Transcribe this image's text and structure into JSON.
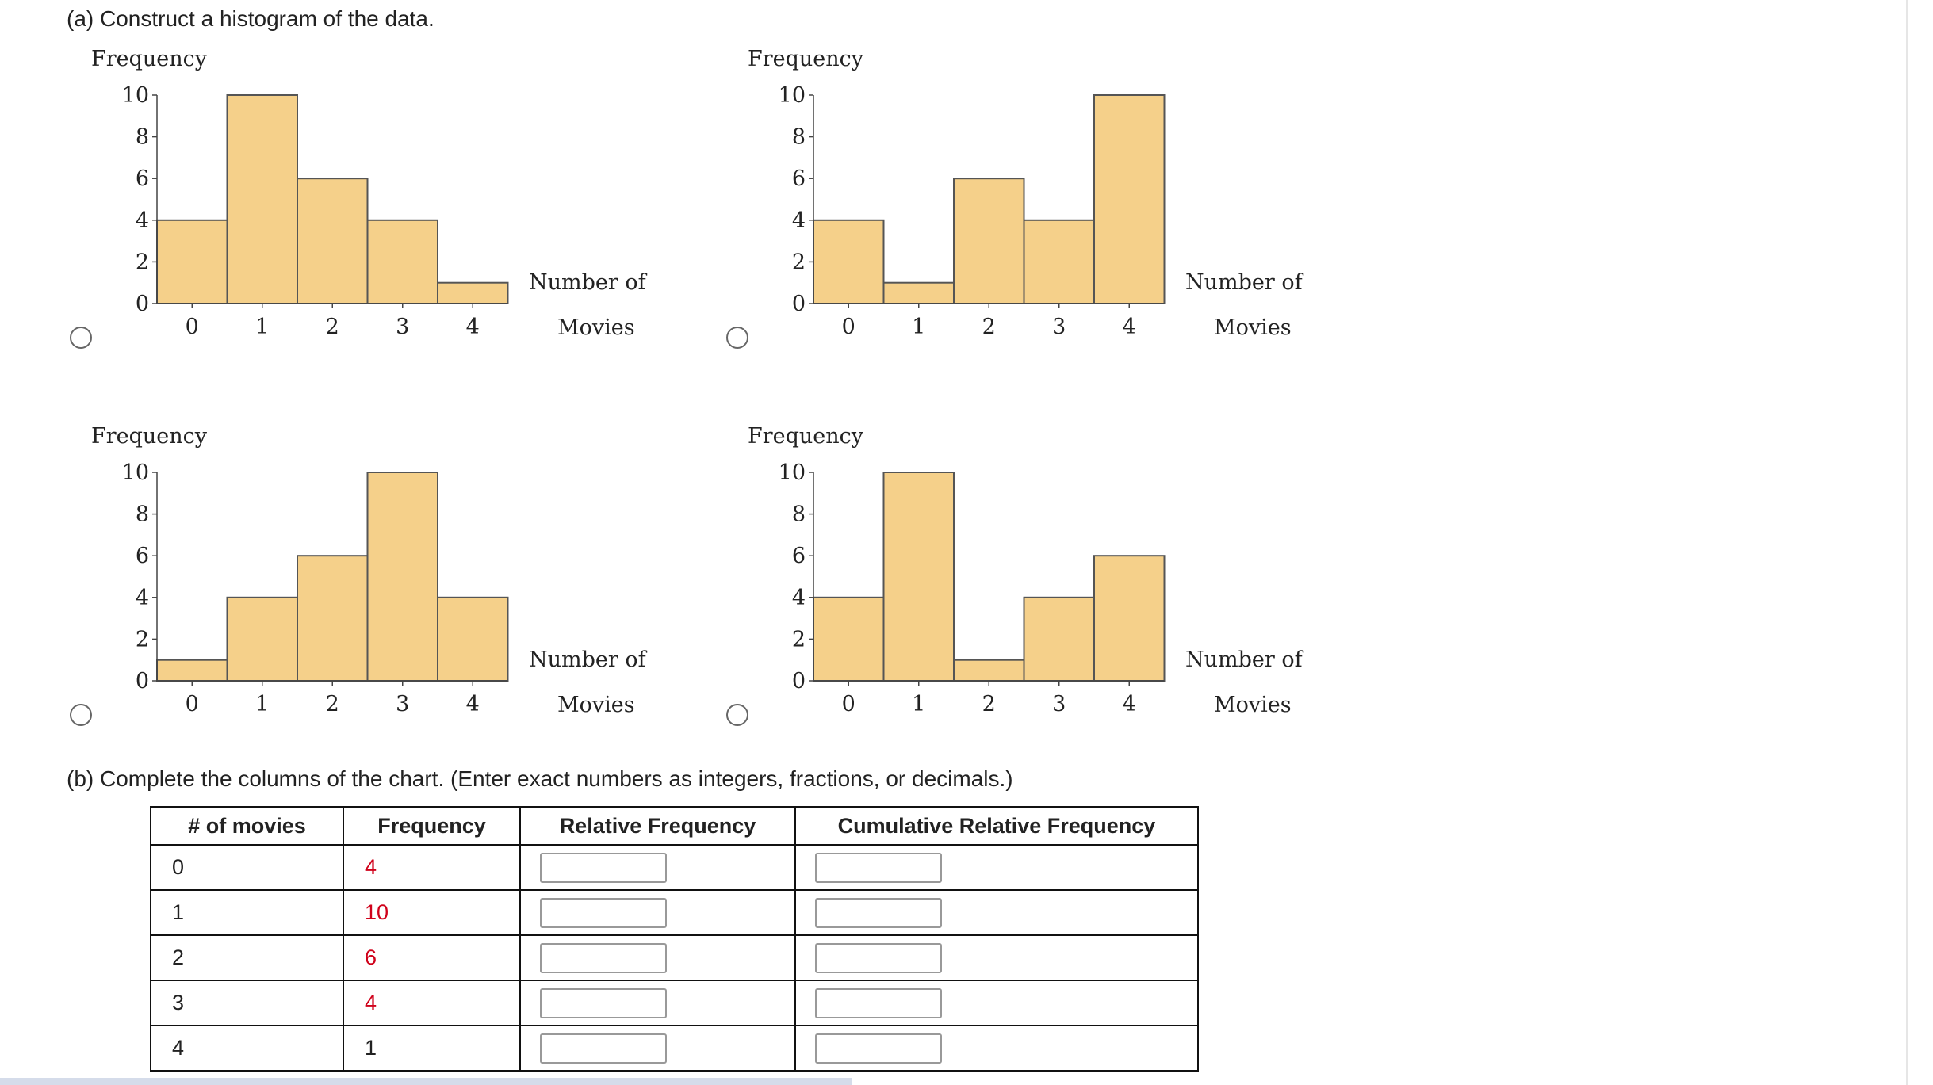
{
  "part_a": {
    "prompt": "(a) Construct a histogram of the data."
  },
  "histogram_labels": {
    "ylabel": "Frequency",
    "xlabel_line1": "Number of",
    "xlabel_line2": "Movies"
  },
  "chart_data": [
    {
      "type": "bar",
      "title": "",
      "ylabel": "Frequency",
      "xlabel": "Number of Movies",
      "categories": [
        "0",
        "1",
        "2",
        "3",
        "4"
      ],
      "values": [
        4,
        10,
        6,
        4,
        1
      ],
      "yticks": [
        "0",
        "2",
        "4",
        "6",
        "8",
        "10"
      ],
      "ylim": [
        0,
        10
      ]
    },
    {
      "type": "bar",
      "title": "",
      "ylabel": "Frequency",
      "xlabel": "Number of Movies",
      "categories": [
        "0",
        "1",
        "2",
        "3",
        "4"
      ],
      "values": [
        4,
        1,
        6,
        4,
        10
      ],
      "yticks": [
        "0",
        "2",
        "4",
        "6",
        "8",
        "10"
      ],
      "ylim": [
        0,
        10
      ]
    },
    {
      "type": "bar",
      "title": "",
      "ylabel": "Frequency",
      "xlabel": "Number of Movies",
      "categories": [
        "0",
        "1",
        "2",
        "3",
        "4"
      ],
      "values": [
        1,
        4,
        6,
        10,
        4
      ],
      "yticks": [
        "0",
        "2",
        "4",
        "6",
        "8",
        "10"
      ],
      "ylim": [
        0,
        10
      ]
    },
    {
      "type": "bar",
      "title": "",
      "ylabel": "Frequency",
      "xlabel": "Number of Movies",
      "categories": [
        "0",
        "1",
        "2",
        "3",
        "4"
      ],
      "values": [
        4,
        10,
        1,
        4,
        6
      ],
      "yticks": [
        "0",
        "2",
        "4",
        "6",
        "8",
        "10"
      ],
      "ylim": [
        0,
        10
      ]
    }
  ],
  "colors": {
    "bar_fill": "#f5d08a",
    "bar_stroke": "#555555",
    "given_value": "#d0021b"
  },
  "part_b": {
    "prompt": "(b) Complete the columns of the chart. (Enter exact numbers as integers, fractions, or decimals.)",
    "headers": [
      "# of movies",
      "Frequency",
      "Relative Frequency",
      "Cumulative Relative Frequency"
    ],
    "rows": [
      {
        "movies": "0",
        "frequency": "4",
        "relative": "",
        "cumulative": ""
      },
      {
        "movies": "1",
        "frequency": "10",
        "relative": "",
        "cumulative": ""
      },
      {
        "movies": "2",
        "frequency": "6",
        "relative": "",
        "cumulative": ""
      },
      {
        "movies": "3",
        "frequency": "4",
        "relative": "",
        "cumulative": ""
      },
      {
        "movies": "4",
        "frequency": "1",
        "relative": "",
        "cumulative": ""
      }
    ]
  }
}
